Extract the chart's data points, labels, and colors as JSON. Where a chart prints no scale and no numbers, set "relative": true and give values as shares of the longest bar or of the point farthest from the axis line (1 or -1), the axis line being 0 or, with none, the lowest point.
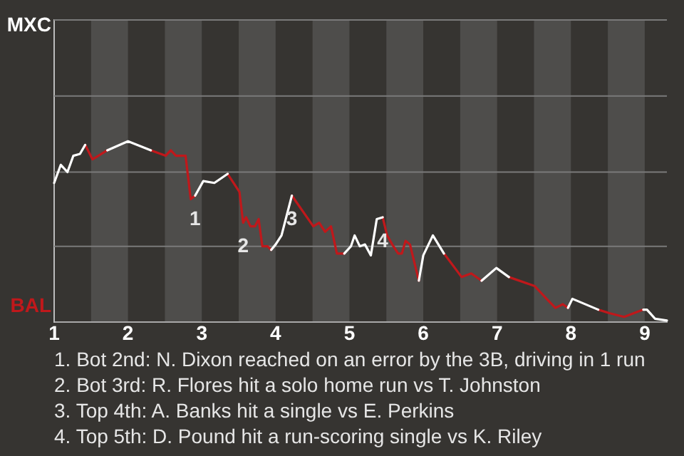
{
  "chart_data": {
    "type": "line",
    "relative": true,
    "x": [
      1.0,
      1.09,
      1.18,
      1.26,
      1.35,
      1.42,
      1.52,
      1.72,
      2.0,
      2.31,
      2.51,
      2.58,
      2.65,
      2.78,
      2.85,
      2.91,
      3.02,
      3.17,
      3.35,
      3.51,
      3.56,
      3.6,
      3.66,
      3.72,
      3.77,
      3.82,
      3.89,
      3.94,
      4.0,
      4.08,
      4.22,
      4.51,
      4.59,
      4.67,
      4.75,
      4.83,
      4.93,
      5.02,
      5.07,
      5.14,
      5.21,
      5.29,
      5.37,
      5.45,
      5.51,
      5.58,
      5.66,
      5.71,
      5.76,
      5.82,
      5.88,
      5.94,
      6.0,
      6.13,
      6.28,
      6.52,
      6.65,
      6.79,
      6.99,
      7.16,
      7.51,
      7.67,
      7.79,
      7.89,
      7.96,
      8.02,
      8.37,
      8.53,
      8.72,
      8.98,
      9.03,
      9.14,
      9.3
    ],
    "series": [
      {
        "name": "MXC",
        "color": "#ffffff",
        "values": [
          0.77,
          0.87,
          0.83,
          0.92,
          0.93,
          0.98,
          null,
          0.95,
          1,
          0.95,
          null,
          null,
          null,
          null,
          null,
          0.7,
          0.78,
          0.77,
          0.82,
          null,
          null,
          null,
          null,
          null,
          null,
          null,
          null,
          0.4,
          0.43,
          0.48,
          0.7,
          null,
          null,
          null,
          null,
          null,
          0.38,
          0.42,
          0.48,
          0.42,
          0.43,
          0.37,
          0.57,
          0.58,
          null,
          null,
          null,
          null,
          null,
          null,
          null,
          0.23,
          0.37,
          0.48,
          0.38,
          null,
          null,
          0.23,
          0.3,
          0.25,
          null,
          null,
          null,
          null,
          0.08,
          0.13,
          0.07,
          null,
          null,
          0.07,
          0.07,
          0.02,
          0.01
        ]
      },
      {
        "name": "BAL",
        "color": "#c0181b",
        "values": [
          null,
          null,
          null,
          null,
          null,
          0.98,
          0.9,
          0.95,
          null,
          0.95,
          0.92,
          0.95,
          0.92,
          0.92,
          0.68,
          0.7,
          null,
          null,
          0.82,
          0.72,
          0.55,
          0.58,
          0.53,
          0.53,
          0.57,
          0.42,
          0.42,
          0.4,
          null,
          null,
          0.7,
          0.53,
          0.55,
          0.5,
          0.53,
          0.38,
          0.38,
          null,
          null,
          null,
          null,
          null,
          null,
          0.58,
          0.48,
          0.43,
          0.38,
          0.38,
          0.45,
          0.43,
          0.33,
          0.23,
          null,
          null,
          0.38,
          0.25,
          0.27,
          0.23,
          null,
          0.25,
          0.2,
          0.13,
          0.08,
          0.1,
          0.08,
          null,
          0.07,
          0.05,
          0.03,
          0.07,
          null,
          null,
          null
        ]
      }
    ],
    "xlim": [
      1,
      9.3
    ],
    "xticks": [
      1,
      2,
      3,
      4,
      5,
      6,
      7,
      8,
      9
    ],
    "ref_lines": [
      {
        "axis": "y",
        "value": 0.42,
        "color": "#7a7a7a"
      },
      {
        "axis": "y",
        "value": 0.83,
        "color": "#7a7a7a"
      },
      {
        "axis": "y",
        "value": 1.25,
        "color": "#7a7a7a"
      },
      {
        "axis": "y",
        "value": 1.67,
        "color": "#7a7a7a"
      }
    ],
    "marker": "none",
    "bands": [
      {
        "axis": "x",
        "from": 1.5,
        "to": 2,
        "color": "#4e4d4b"
      },
      {
        "axis": "x",
        "from": 2.5,
        "to": 3,
        "color": "#4e4d4b"
      },
      {
        "axis": "x",
        "from": 3.5,
        "to": 4,
        "color": "#4e4d4b"
      },
      {
        "axis": "x",
        "from": 4.5,
        "to": 5,
        "color": "#4e4d4b"
      },
      {
        "axis": "x",
        "from": 5.5,
        "to": 6,
        "color": "#4e4d4b"
      },
      {
        "axis": "x",
        "from": 6.5,
        "to": 7,
        "color": "#4e4d4b"
      },
      {
        "axis": "x",
        "from": 7.5,
        "to": 8,
        "color": "#4e4d4b"
      },
      {
        "axis": "x",
        "from": 8.5,
        "to": 9,
        "color": "#4e4d4b"
      }
    ],
    "annotations": [
      {
        "text": "1",
        "x": 2.91,
        "y": 0.7
      },
      {
        "text": "2",
        "x": 3.56,
        "y": 0.55
      },
      {
        "text": "3",
        "x": 4.22,
        "y": 0.7
      },
      {
        "text": "4",
        "x": 5.45,
        "y": 0.58
      },
      "1. Bot 2nd: N. Dixon reached on an error by the 3B, driving in 1 run",
      "2. Bot 3rd: R. Flores hit a solo home run vs T. Johnston",
      "3. Top 4th: A. Banks hit a single vs E. Perkins",
      "4. Top 5th: D. Pound hit a run-scoring single vs K. Riley"
    ]
  }
}
